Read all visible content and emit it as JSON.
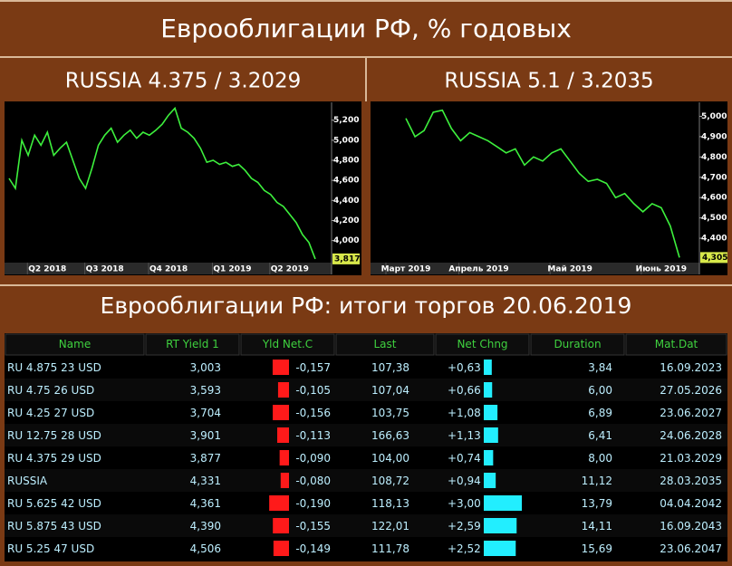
{
  "title": "Еврооблигации РФ, % годовых",
  "chart_data": [
    {
      "type": "line",
      "title": "RUSSIA 4.375 / 3.2029",
      "color": "#3df03d",
      "categories": [
        null,
        null,
        null,
        null,
        null,
        null,
        "Q2 2018",
        null,
        null,
        null,
        null,
        null,
        null,
        null,
        null,
        "Q3 2018",
        null,
        null,
        null,
        null,
        null,
        null,
        null,
        null,
        null,
        "Q4 2018",
        null,
        null,
        null,
        null,
        null,
        null,
        null,
        null,
        null,
        "Q1 2019",
        null,
        null,
        null,
        null,
        null,
        null,
        null,
        null,
        "Q2 2019",
        null,
        null,
        null,
        null
      ],
      "values": [
        4.62,
        4.52,
        5.0,
        4.85,
        5.05,
        4.95,
        5.08,
        4.85,
        4.92,
        4.98,
        4.8,
        4.62,
        4.52,
        4.72,
        4.95,
        5.05,
        5.12,
        4.98,
        5.05,
        5.1,
        5.02,
        5.08,
        5.05,
        5.1,
        5.16,
        5.25,
        5.32,
        5.12,
        5.08,
        5.02,
        4.92,
        4.78,
        4.8,
        4.76,
        4.78,
        4.74,
        4.76,
        4.7,
        4.62,
        4.58,
        4.5,
        4.46,
        4.38,
        4.34,
        4.26,
        4.18,
        4.06,
        3.98,
        3.817
      ],
      "value_labels": [
        null,
        null,
        null,
        null,
        null,
        null,
        null,
        null,
        null,
        null,
        null,
        null,
        null,
        null,
        null,
        null,
        null,
        null,
        null,
        null,
        null,
        null,
        null,
        null,
        null,
        null,
        null,
        null,
        null,
        null,
        null,
        null,
        null,
        null,
        null,
        null,
        null,
        null,
        null,
        null,
        null,
        null,
        null,
        null,
        null,
        null,
        null,
        null,
        "3,817"
      ],
      "ylim": [
        3.78,
        5.36
      ],
      "yticks": [
        {
          "value": 4.0,
          "label": "4,000"
        },
        {
          "value": 4.2,
          "label": "4,200"
        },
        {
          "value": 4.4,
          "label": "4,400"
        },
        {
          "value": 4.6,
          "label": "4,600"
        },
        {
          "value": 4.8,
          "label": "4,800"
        },
        {
          "value": 5.0,
          "label": "5,000"
        },
        {
          "value": 5.2,
          "label": "5,200"
        }
      ]
    },
    {
      "type": "line",
      "title": "RUSSIA 5.1 / 3.2035",
      "color": "#3df03d",
      "categories": [
        "Март 2019",
        null,
        null,
        null,
        null,
        null,
        null,
        null,
        "Апрель 2019",
        null,
        null,
        null,
        null,
        null,
        null,
        null,
        null,
        null,
        "Май 2019",
        null,
        null,
        null,
        null,
        null,
        null,
        null,
        null,
        null,
        "Июнь 2019",
        null,
        null
      ],
      "values": [
        4.99,
        4.9,
        4.93,
        5.02,
        5.03,
        4.94,
        4.88,
        4.92,
        4.9,
        4.88,
        4.85,
        4.82,
        4.84,
        4.76,
        4.8,
        4.78,
        4.82,
        4.84,
        4.78,
        4.72,
        4.68,
        4.69,
        4.67,
        4.6,
        4.62,
        4.57,
        4.53,
        4.57,
        4.55,
        4.46,
        4.305
      ],
      "value_labels": [
        null,
        null,
        null,
        null,
        null,
        null,
        null,
        null,
        null,
        null,
        null,
        null,
        null,
        null,
        null,
        null,
        null,
        null,
        null,
        null,
        null,
        null,
        null,
        null,
        null,
        null,
        null,
        null,
        null,
        null,
        "4,305"
      ],
      "ylim": [
        4.28,
        5.06
      ],
      "yticks": [
        {
          "value": 4.4,
          "label": "4,400"
        },
        {
          "value": 4.5,
          "label": "4,500"
        },
        {
          "value": 4.6,
          "label": "4,600"
        },
        {
          "value": 4.7,
          "label": "4,700"
        },
        {
          "value": 4.8,
          "label": "4,800"
        },
        {
          "value": 4.9,
          "label": "4,900"
        },
        {
          "value": 5.0,
          "label": "5,000"
        }
      ]
    }
  ],
  "table": {
    "title": "Еврооблигации РФ: итоги торгов 20.06.2019",
    "columns": [
      "Name",
      "RT Yield 1",
      "Yld Net.C",
      "Last",
      "Net Chng",
      "Duration",
      "Mat.Dat"
    ],
    "rows": [
      [
        "RU 4.875 23 USD",
        "3,003",
        {
          "value": -0.157,
          "label": "-0,157"
        },
        "107,38",
        {
          "value": 0.63,
          "label": "+0,63"
        },
        "3,84",
        "16.09.2023"
      ],
      [
        "RU 4.75 26 USD",
        "3,593",
        {
          "value": -0.105,
          "label": "-0,105"
        },
        "107,04",
        {
          "value": 0.66,
          "label": "+0,66"
        },
        "6,00",
        "27.05.2026"
      ],
      [
        "RU 4.25 27 USD",
        "3,704",
        {
          "value": -0.156,
          "label": "-0,156"
        },
        "103,75",
        {
          "value": 1.08,
          "label": "+1,08"
        },
        "6,89",
        "23.06.2027"
      ],
      [
        "RU 12.75 28 USD",
        "3,901",
        {
          "value": -0.113,
          "label": "-0,113"
        },
        "166,63",
        {
          "value": 1.13,
          "label": "+1,13"
        },
        "6,41",
        "24.06.2028"
      ],
      [
        "RU 4.375 29 USD",
        "3,877",
        {
          "value": -0.09,
          "label": "-0,090"
        },
        "104,00",
        {
          "value": 0.74,
          "label": "+0,74"
        },
        "8,00",
        "21.03.2029"
      ],
      [
        "RUSSIA",
        "4,331",
        {
          "value": -0.08,
          "label": "-0,080"
        },
        "108,72",
        {
          "value": 0.94,
          "label": "+0,94"
        },
        "11,12",
        "28.03.2035"
      ],
      [
        "RU 5.625 42 USD",
        "4,361",
        {
          "value": -0.19,
          "label": "-0,190"
        },
        "118,13",
        {
          "value": 3.0,
          "label": "+3,00"
        },
        "13,79",
        "04.04.2042"
      ],
      [
        "RU 5.875 43 USD",
        "4,390",
        {
          "value": -0.155,
          "label": "-0,155"
        },
        "122,01",
        {
          "value": 2.59,
          "label": "+2,59"
        },
        "14,11",
        "16.09.2043"
      ],
      [
        "RU 5.25 47 USD",
        "4,506",
        {
          "value": -0.149,
          "label": "-0,149"
        },
        "111,78",
        {
          "value": 2.52,
          "label": "+2,52"
        },
        "15,69",
        "23.06.2047"
      ]
    ]
  }
}
